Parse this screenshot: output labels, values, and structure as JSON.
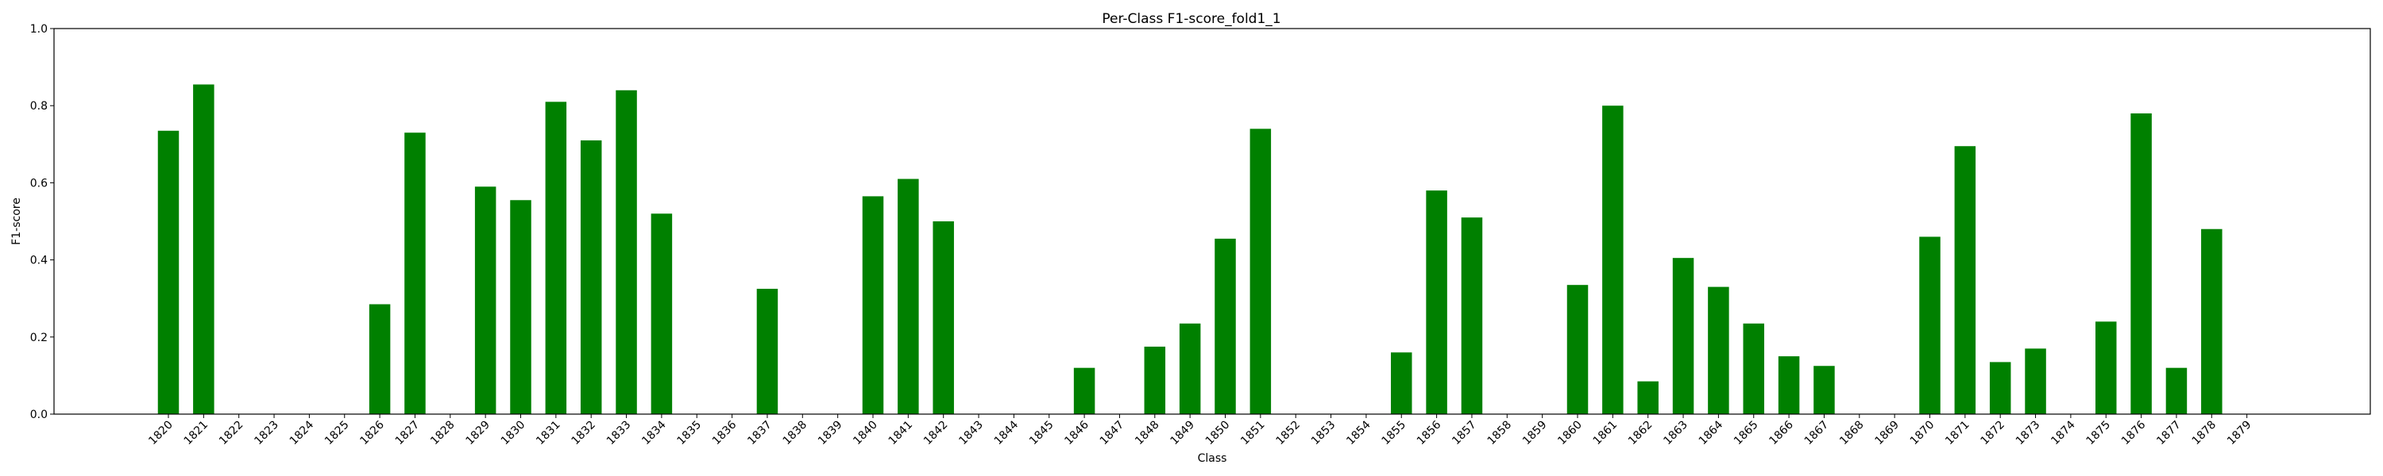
{
  "chart_data": {
    "type": "bar",
    "title": "Per-Class F1-score_fold1_1",
    "xlabel": "Class",
    "ylabel": "F1-score",
    "ylim": [
      0,
      1.0
    ],
    "yticks": [
      "0.0",
      "0.2",
      "0.4",
      "0.6",
      "0.8",
      "1.0"
    ],
    "grid": false,
    "bar_color": "#008000",
    "categories": [
      "1820",
      "1821",
      "1822",
      "1823",
      "1824",
      "1825",
      "1826",
      "1827",
      "1828",
      "1829",
      "1830",
      "1831",
      "1832",
      "1833",
      "1834",
      "1835",
      "1836",
      "1837",
      "1838",
      "1839",
      "1840",
      "1841",
      "1842",
      "1843",
      "1844",
      "1845",
      "1846",
      "1847",
      "1848",
      "1849",
      "1850",
      "1851",
      "1852",
      "1853",
      "1854",
      "1855",
      "1856",
      "1857",
      "1858",
      "1859",
      "1860",
      "1861",
      "1862",
      "1863",
      "1864",
      "1865",
      "1866",
      "1867",
      "1868",
      "1869",
      "1870",
      "1871",
      "1872",
      "1873",
      "1874",
      "1875",
      "1876",
      "1877",
      "1878",
      "1879"
    ],
    "values": [
      0.735,
      0.855,
      0,
      0,
      0,
      0,
      0.285,
      0.73,
      0,
      0.59,
      0.555,
      0.81,
      0.71,
      0.84,
      0.52,
      0,
      0,
      0.325,
      0,
      0,
      0.565,
      0.61,
      0.5,
      0,
      0,
      0,
      0.12,
      0,
      0.175,
      0.235,
      0.455,
      0.74,
      0,
      0,
      0,
      0.16,
      0.58,
      0.51,
      0,
      0,
      0.335,
      0.8,
      0.085,
      0.405,
      0.33,
      0.235,
      0.15,
      0.125,
      0,
      0,
      0.46,
      0.695,
      0.135,
      0.17,
      0,
      0.24,
      0.78,
      0.12,
      0.48,
      0
    ]
  }
}
